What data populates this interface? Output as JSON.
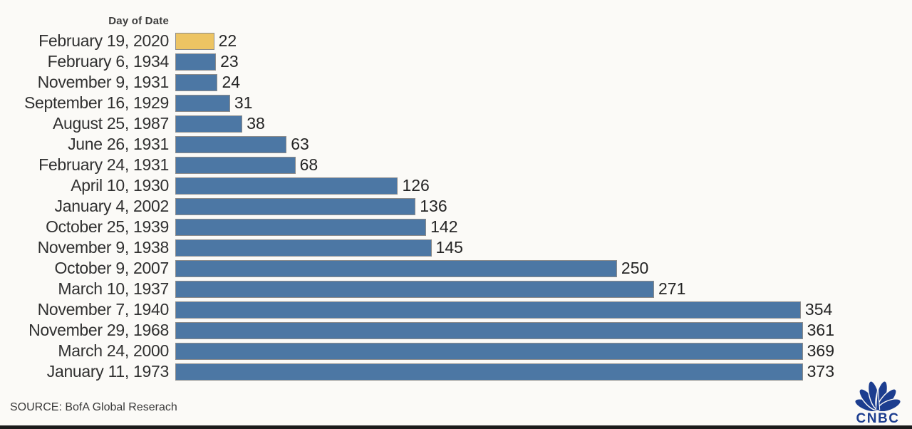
{
  "chart_data": {
    "type": "bar",
    "orientation": "horizontal",
    "column_header": "Day of Date",
    "categories": [
      "February 19, 2020",
      "February 6, 1934",
      "November 9, 1931",
      "September 16, 1929",
      "August 25, 1987",
      "June 26, 1931",
      "February 24, 1931",
      "April 10, 1930",
      "January 4, 2002",
      "October 25, 1939",
      "November 9, 1938",
      "October 9, 2007",
      "March 10, 1937",
      "November 7, 1940",
      "November 29, 1968",
      "March 24, 2000",
      "January 11, 1973"
    ],
    "values": [
      22,
      23,
      24,
      31,
      38,
      63,
      68,
      126,
      136,
      142,
      145,
      250,
      271,
      354,
      361,
      369,
      373
    ],
    "highlight_index": 0,
    "xlim": [
      0,
      373
    ],
    "bar_color": "#4c77a4",
    "highlight_color": "#edc463",
    "bar_border_color": "#8c8c8c",
    "value_labels": true,
    "grid": false,
    "legend": false
  },
  "footer": {
    "source": "SOURCE: BofA Global Reserach",
    "logo_text": "CNBC",
    "logo_color": "#1c3d8f"
  }
}
